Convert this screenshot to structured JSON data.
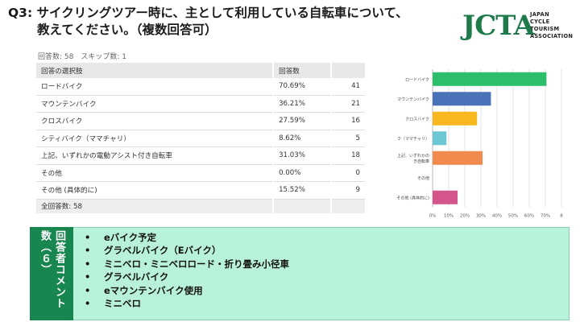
{
  "title": {
    "line1": "Q3: サイクリングツアー時に、主として利用している自転車について、",
    "line2": "教えてください。（複数回答可）"
  },
  "logo": {
    "mark": "JCTA",
    "sub": [
      "JAPAN",
      "CYCLE",
      "TOURISM",
      "ASSOCIATION"
    ]
  },
  "stats": "回答数: 58　スキップ数: 1",
  "table": {
    "headers": [
      "回答の選択肢",
      "回答数",
      ""
    ],
    "rows": [
      {
        "label": "ロードバイク",
        "pct": "70.69%",
        "count": "41"
      },
      {
        "label": "マウンテンバイク",
        "pct": "36.21%",
        "count": "21"
      },
      {
        "label": "クロスバイク",
        "pct": "27.59%",
        "count": "16"
      },
      {
        "label": "シティバイク（ママチャリ）",
        "pct": "8.62%",
        "count": "5"
      },
      {
        "label": "上記、いずれかの電動アシスト付き自転車",
        "pct": "31.03%",
        "count": "18"
      },
      {
        "label": "その他",
        "pct": "0.00%",
        "count": "0"
      },
      {
        "label": "その他 (具体的に)",
        "pct": "15.52%",
        "count": "9"
      }
    ],
    "total": "全回答数: 58"
  },
  "chart_data": {
    "type": "bar",
    "orientation": "horizontal",
    "categories": [
      "ロードバイク",
      "マウンテンバイク",
      "クロスバイク",
      "ク（ママチャリ）",
      "上記、いずれかの電動アシスト付き自転車",
      "その他",
      "その他 (具体的に)"
    ],
    "category_labels": [
      [
        "ロードバイク"
      ],
      [
        "マウンテンバイク"
      ],
      [
        "クロスバイク"
      ],
      [
        "ク（ママチャリ）"
      ],
      [
        "上記、いずれかの",
        "き自転車"
      ],
      [
        "その他"
      ],
      [
        "その他 (具体的に)"
      ]
    ],
    "values": [
      70.69,
      36.21,
      27.59,
      8.62,
      31.03,
      0,
      15.52
    ],
    "colors": [
      "#2dbe6c",
      "#4a72b8",
      "#f6b81e",
      "#6cc6d4",
      "#f28a4e",
      "#a05ad0",
      "#d4548c"
    ],
    "xlim": [
      0,
      80
    ],
    "xticks": [
      "0%",
      "10%",
      "20%",
      "30%",
      "40%",
      "50%",
      "60%",
      "70%",
      "8"
    ],
    "grid": true
  },
  "comments": {
    "label": "回答者コメント数（６）",
    "bullet": "•",
    "items": [
      "eバイク予定",
      "グラベルバイク（Eバイク）",
      "ミニベロ・ミニベロロード・折り畳み小径車",
      "グラベルバイク",
      "eマウンテンバイク使用",
      "ミニベロ"
    ]
  }
}
